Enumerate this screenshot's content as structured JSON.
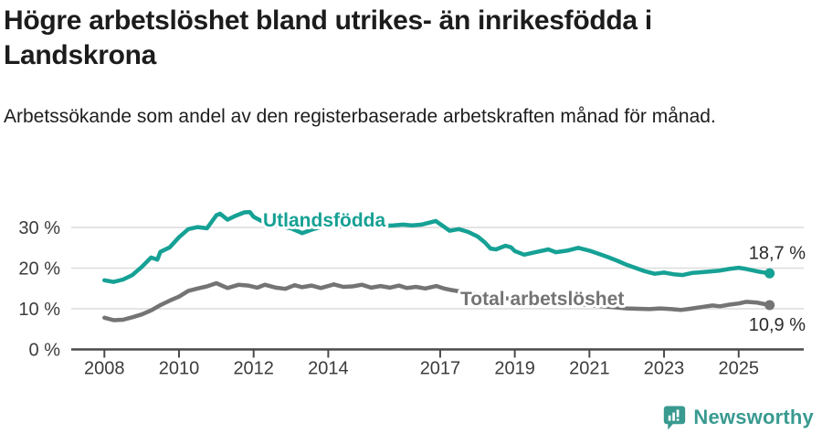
{
  "title": "Högre arbetslöshet bland utrikes- än inrikesfödda i Landskrona",
  "subtitle": "Arbetssökande som andel av den registerbaserade arbetskraften månad för månad.",
  "branding": {
    "logo_text": "Newsworthy",
    "logo_icon": "newsworthy-speech-bubble-bar-chart-icon",
    "color": "#399a90"
  },
  "colors": {
    "foreign_born_line": "#16a195",
    "total_line": "#747474",
    "grid": "#dcdcdc",
    "axis": "#4a4a4a",
    "tick_label": "#3c3c3c",
    "value_label": "#2b2b2b",
    "text": "#1c1c1c"
  },
  "chart_data": {
    "type": "line",
    "title": "Högre arbetslöshet bland utrikes- än inrikesfödda i Landskrona",
    "subtitle": "Arbetssökande som andel av den registerbaserade arbetskraften månad för månad.",
    "x_unit": "decimal_year",
    "y_unit": "percent",
    "xlim": [
      2007.15,
      2026.75
    ],
    "ylim": [
      0,
      36
    ],
    "grid": "horizontal",
    "legend_position": "inline-labels",
    "x_ticks": [
      {
        "value": 2008,
        "label": "2008"
      },
      {
        "value": 2010,
        "label": "2010"
      },
      {
        "value": 2012,
        "label": "2012"
      },
      {
        "value": 2014,
        "label": "2014"
      },
      {
        "value": 2017,
        "label": "2017"
      },
      {
        "value": 2019,
        "label": "2019"
      },
      {
        "value": 2021,
        "label": "2021"
      },
      {
        "value": 2023,
        "label": "2023"
      },
      {
        "value": 2025,
        "label": "2025"
      }
    ],
    "y_ticks": [
      {
        "value": 0,
        "label": "0 %"
      },
      {
        "value": 10,
        "label": "10 %"
      },
      {
        "value": 20,
        "label": "20 %"
      },
      {
        "value": 30,
        "label": "30 %"
      }
    ],
    "series": [
      {
        "name": "Utlandsfödda",
        "color": "#16a195",
        "end_value": 18.7,
        "end_value_label": "18,7 %",
        "points": [
          [
            2008.0,
            17.0
          ],
          [
            2008.25,
            16.6
          ],
          [
            2008.5,
            17.2
          ],
          [
            2008.75,
            18.3
          ],
          [
            2009.0,
            20.3
          ],
          [
            2009.25,
            22.6
          ],
          [
            2009.42,
            22.1
          ],
          [
            2009.5,
            24.0
          ],
          [
            2009.75,
            25.1
          ],
          [
            2010.0,
            27.6
          ],
          [
            2010.25,
            29.6
          ],
          [
            2010.5,
            30.1
          ],
          [
            2010.75,
            29.8
          ],
          [
            2011.0,
            33.0
          ],
          [
            2011.1,
            33.4
          ],
          [
            2011.3,
            31.9
          ],
          [
            2011.5,
            32.8
          ],
          [
            2011.75,
            33.7
          ],
          [
            2011.9,
            33.8
          ],
          [
            2012.0,
            32.6
          ],
          [
            2012.25,
            31.4
          ],
          [
            2012.5,
            30.8
          ],
          [
            2012.75,
            30.2
          ],
          [
            2013.0,
            29.8
          ],
          [
            2013.3,
            28.6
          ],
          [
            2013.6,
            29.6
          ],
          [
            2013.8,
            30.1
          ],
          [
            2014.0,
            30.4
          ],
          [
            2014.25,
            30.2
          ],
          [
            2014.5,
            30.5
          ],
          [
            2014.75,
            30.3
          ],
          [
            2015.0,
            30.6
          ],
          [
            2015.25,
            30.2
          ],
          [
            2015.5,
            30.4
          ],
          [
            2015.75,
            30.5
          ],
          [
            2016.0,
            30.7
          ],
          [
            2016.25,
            30.5
          ],
          [
            2016.5,
            30.7
          ],
          [
            2016.88,
            31.6
          ],
          [
            2017.1,
            30.2
          ],
          [
            2017.25,
            29.2
          ],
          [
            2017.5,
            29.6
          ],
          [
            2017.75,
            28.9
          ],
          [
            2018.0,
            27.8
          ],
          [
            2018.2,
            26.3
          ],
          [
            2018.35,
            24.8
          ],
          [
            2018.5,
            24.6
          ],
          [
            2018.75,
            25.5
          ],
          [
            2018.9,
            25.1
          ],
          [
            2019.0,
            24.2
          ],
          [
            2019.25,
            23.3
          ],
          [
            2019.5,
            23.8
          ],
          [
            2019.9,
            24.6
          ],
          [
            2020.1,
            23.9
          ],
          [
            2020.4,
            24.3
          ],
          [
            2020.7,
            25.0
          ],
          [
            2021.0,
            24.3
          ],
          [
            2021.25,
            23.5
          ],
          [
            2021.5,
            22.7
          ],
          [
            2021.75,
            21.8
          ],
          [
            2022.0,
            20.8
          ],
          [
            2022.25,
            20.0
          ],
          [
            2022.5,
            19.2
          ],
          [
            2022.75,
            18.6
          ],
          [
            2023.0,
            18.9
          ],
          [
            2023.25,
            18.5
          ],
          [
            2023.5,
            18.3
          ],
          [
            2023.75,
            18.8
          ],
          [
            2024.0,
            19.0
          ],
          [
            2024.25,
            19.2
          ],
          [
            2024.5,
            19.4
          ],
          [
            2024.75,
            19.8
          ],
          [
            2025.0,
            20.1
          ],
          [
            2025.2,
            19.8
          ],
          [
            2025.5,
            19.2
          ],
          [
            2025.83,
            18.7
          ]
        ]
      },
      {
        "name": "Total arbetslöshet",
        "color": "#747474",
        "end_value": 10.9,
        "end_value_label": "10,9 %",
        "points": [
          [
            2008.0,
            7.8
          ],
          [
            2008.25,
            7.2
          ],
          [
            2008.5,
            7.3
          ],
          [
            2008.75,
            7.9
          ],
          [
            2009.0,
            8.6
          ],
          [
            2009.25,
            9.6
          ],
          [
            2009.5,
            10.9
          ],
          [
            2009.75,
            12.0
          ],
          [
            2010.0,
            13.0
          ],
          [
            2010.25,
            14.4
          ],
          [
            2010.5,
            15.0
          ],
          [
            2010.75,
            15.5
          ],
          [
            2011.0,
            16.3
          ],
          [
            2011.3,
            15.1
          ],
          [
            2011.6,
            15.9
          ],
          [
            2011.85,
            15.7
          ],
          [
            2012.1,
            15.2
          ],
          [
            2012.3,
            15.9
          ],
          [
            2012.6,
            15.2
          ],
          [
            2012.85,
            14.9
          ],
          [
            2013.1,
            15.8
          ],
          [
            2013.3,
            15.3
          ],
          [
            2013.55,
            15.7
          ],
          [
            2013.8,
            15.1
          ],
          [
            2014.0,
            15.6
          ],
          [
            2014.15,
            16.0
          ],
          [
            2014.4,
            15.4
          ],
          [
            2014.65,
            15.5
          ],
          [
            2014.9,
            15.9
          ],
          [
            2015.15,
            15.2
          ],
          [
            2015.4,
            15.6
          ],
          [
            2015.65,
            15.2
          ],
          [
            2015.9,
            15.7
          ],
          [
            2016.1,
            15.1
          ],
          [
            2016.35,
            15.4
          ],
          [
            2016.6,
            15.0
          ],
          [
            2016.9,
            15.6
          ],
          [
            2017.1,
            15.0
          ],
          [
            2017.3,
            14.6
          ],
          [
            2017.5,
            14.3
          ],
          [
            2018.0,
            13.6
          ],
          [
            2018.5,
            12.9
          ],
          [
            2019.0,
            12.3
          ],
          [
            2019.5,
            11.8
          ],
          [
            2020.0,
            11.5
          ],
          [
            2020.5,
            11.2
          ],
          [
            2021.0,
            10.9
          ],
          [
            2021.5,
            10.5
          ],
          [
            2022.0,
            10.1
          ],
          [
            2022.3,
            10.0
          ],
          [
            2022.6,
            9.9
          ],
          [
            2022.9,
            10.1
          ],
          [
            2023.2,
            9.9
          ],
          [
            2023.45,
            9.7
          ],
          [
            2023.7,
            10.0
          ],
          [
            2024.0,
            10.4
          ],
          [
            2024.3,
            10.8
          ],
          [
            2024.5,
            10.6
          ],
          [
            2024.75,
            11.0
          ],
          [
            2025.0,
            11.3
          ],
          [
            2025.2,
            11.7
          ],
          [
            2025.5,
            11.5
          ],
          [
            2025.83,
            10.9
          ]
        ]
      }
    ]
  }
}
